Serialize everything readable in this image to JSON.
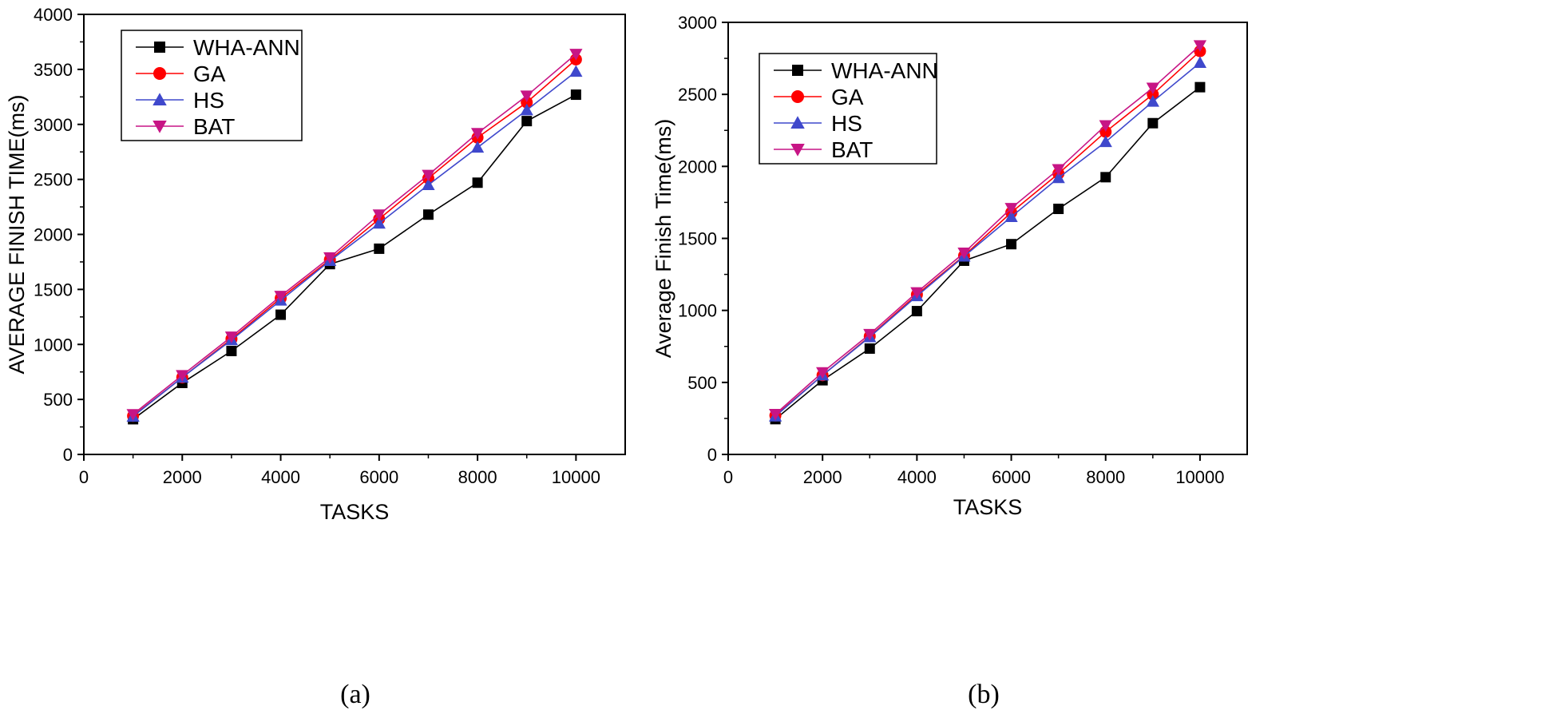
{
  "chart_data": [
    {
      "type": "line",
      "caption": "(a)",
      "xlabel": "TASKS",
      "ylabel": "AVERAGE FINISH TIME(ms)",
      "xlim": [
        0,
        11000
      ],
      "ylim": [
        0,
        4000
      ],
      "xticks": [
        0,
        2000,
        4000,
        6000,
        8000,
        10000
      ],
      "yticks": [
        0,
        500,
        1000,
        1500,
        2000,
        2500,
        3000,
        3500,
        4000
      ],
      "legend_position": "top-left",
      "x": [
        1000,
        2000,
        3000,
        4000,
        5000,
        6000,
        7000,
        8000,
        9000,
        10000
      ],
      "series": [
        {
          "name": "WHA-ANN",
          "color": "#000000",
          "marker": "square",
          "values": [
            320,
            650,
            940,
            1270,
            1730,
            1870,
            2180,
            2470,
            3030,
            3270
          ]
        },
        {
          "name": "GA",
          "color": "#ff0000",
          "marker": "circle",
          "values": [
            350,
            700,
            1050,
            1420,
            1770,
            2140,
            2510,
            2880,
            3200,
            3590
          ]
        },
        {
          "name": "HS",
          "color": "#3f48cc",
          "marker": "triangle-up",
          "values": [
            345,
            700,
            1040,
            1400,
            1760,
            2100,
            2450,
            2790,
            3130,
            3480
          ]
        },
        {
          "name": "BAT",
          "color": "#c71585",
          "marker": "triangle-down",
          "values": [
            365,
            720,
            1070,
            1440,
            1790,
            2180,
            2540,
            2920,
            3260,
            3640
          ]
        }
      ]
    },
    {
      "type": "line",
      "caption": "(b)",
      "xlabel": "TASKS",
      "ylabel": "Average Finish Time(ms)",
      "xlim": [
        0,
        11000
      ],
      "ylim": [
        0,
        3000
      ],
      "xticks": [
        0,
        2000,
        4000,
        6000,
        8000,
        10000
      ],
      "yticks": [
        0,
        500,
        1000,
        1500,
        2000,
        2500,
        3000
      ],
      "legend_position": "top-left",
      "x": [
        1000,
        2000,
        3000,
        4000,
        5000,
        6000,
        7000,
        8000,
        9000,
        10000
      ],
      "series": [
        {
          "name": "WHA-ANN",
          "color": "#000000",
          "marker": "square",
          "values": [
            245,
            515,
            735,
            995,
            1345,
            1460,
            1705,
            1925,
            2300,
            2550
          ]
        },
        {
          "name": "GA",
          "color": "#ff0000",
          "marker": "circle",
          "values": [
            270,
            550,
            820,
            1110,
            1380,
            1680,
            1950,
            2240,
            2500,
            2800
          ]
        },
        {
          "name": "HS",
          "color": "#3f48cc",
          "marker": "triangle-up",
          "values": [
            265,
            550,
            815,
            1100,
            1375,
            1650,
            1920,
            2170,
            2450,
            2720
          ]
        },
        {
          "name": "BAT",
          "color": "#c71585",
          "marker": "triangle-down",
          "values": [
            280,
            570,
            835,
            1125,
            1400,
            1710,
            1980,
            2285,
            2545,
            2840
          ]
        }
      ]
    }
  ]
}
